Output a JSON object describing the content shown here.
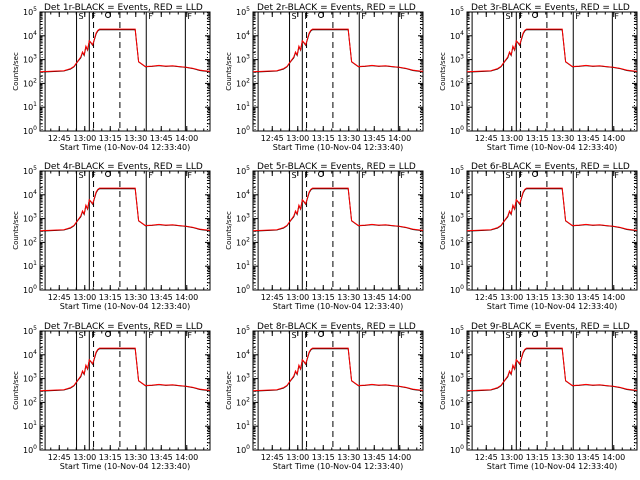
{
  "chart_data": [
    {
      "type": "line",
      "panel": 1,
      "title": "Det 1r-BLACK = Events, RED = LLD"
    },
    {
      "type": "line",
      "panel": 2,
      "title": "Det 2r-BLACK = Events, RED = LLD"
    },
    {
      "type": "line",
      "panel": 3,
      "title": "Det 3r-BLACK = Events, RED = LLD"
    },
    {
      "type": "line",
      "panel": 4,
      "title": "Det 4r-BLACK = Events, RED = LLD"
    },
    {
      "type": "line",
      "panel": 5,
      "title": "Det 5r-BLACK = Events, RED = LLD"
    },
    {
      "type": "line",
      "panel": 6,
      "title": "Det 6r-BLACK = Events, RED = LLD"
    },
    {
      "type": "line",
      "panel": 7,
      "title": "Det 7r-BLACK = Events, RED = LLD"
    },
    {
      "type": "line",
      "panel": 8,
      "title": "Det 8r-BLACK = Events, RED = LLD"
    },
    {
      "type": "line",
      "panel": 9,
      "title": "Det 9r-BLACK = Events, RED = LLD"
    }
  ],
  "shared": {
    "xlabel": "Start Time (10-Nov-04 12:33:40)",
    "ylabel": "Counts/sec",
    "x_ticks": [
      "12:45",
      "13:00",
      "13:15",
      "13:30",
      "13:45",
      "14:00"
    ],
    "x_tick_minutes": [
      11.33,
      26.33,
      41.33,
      56.33,
      71.33,
      86.33
    ],
    "x_range_minutes": [
      0,
      100
    ],
    "y_scale": "log",
    "y_ticks": [
      "10^0",
      "10^1",
      "10^2",
      "10^3",
      "10^4",
      "10^5"
    ],
    "y_range": [
      1,
      100000
    ],
    "solid_markers_min": [
      3,
      21.5,
      29,
      62.5,
      85.5
    ],
    "dashed_markers_min": [
      31.5,
      47
    ],
    "markers_top_labels": [
      "S",
      "S",
      "F",
      "F",
      "F"
    ],
    "events_series_color": "#000000",
    "lld_series_color": "#ff0000",
    "series": [
      {
        "name": "Events",
        "color": "#000000",
        "x": [
          0,
          5,
          10,
          14,
          18,
          20,
          22,
          24,
          25,
          26,
          27,
          28,
          29,
          30,
          31,
          33,
          34,
          35,
          36,
          37,
          38,
          40,
          44,
          46,
          48,
          50,
          52,
          54,
          55,
          56,
          58,
          62,
          66,
          70,
          74,
          78,
          82,
          86,
          90,
          94,
          100
        ],
        "y": [
          300,
          310,
          320,
          330,
          400,
          500,
          800,
          1200,
          2000,
          1500,
          3500,
          2500,
          6000,
          5000,
          4000,
          12000,
          16000,
          18000,
          18000,
          18000,
          18000,
          18000,
          18000,
          18000,
          18000,
          18000,
          18000,
          18000,
          18000,
          18000,
          800,
          500,
          520,
          560,
          520,
          540,
          500,
          470,
          420,
          350,
          310
        ]
      },
      {
        "name": "LLD",
        "color": "#ff0000",
        "x": [
          0,
          5,
          10,
          14,
          18,
          20,
          22,
          24,
          25,
          26,
          27,
          28,
          29,
          30,
          31,
          33,
          34,
          35,
          36,
          37,
          38,
          40,
          44,
          46,
          48,
          50,
          52,
          54,
          55,
          56,
          58,
          62,
          66,
          70,
          74,
          78,
          82,
          86,
          90,
          94,
          100
        ],
        "y": [
          310,
          320,
          330,
          340,
          420,
          520,
          820,
          1300,
          2100,
          1600,
          3700,
          2600,
          6200,
          5200,
          4200,
          13000,
          17000,
          19000,
          19000,
          19000,
          19000,
          19000,
          19000,
          19000,
          19000,
          19000,
          19000,
          19000,
          19000,
          19000,
          820,
          510,
          530,
          570,
          530,
          550,
          510,
          480,
          430,
          360,
          320
        ]
      }
    ]
  }
}
